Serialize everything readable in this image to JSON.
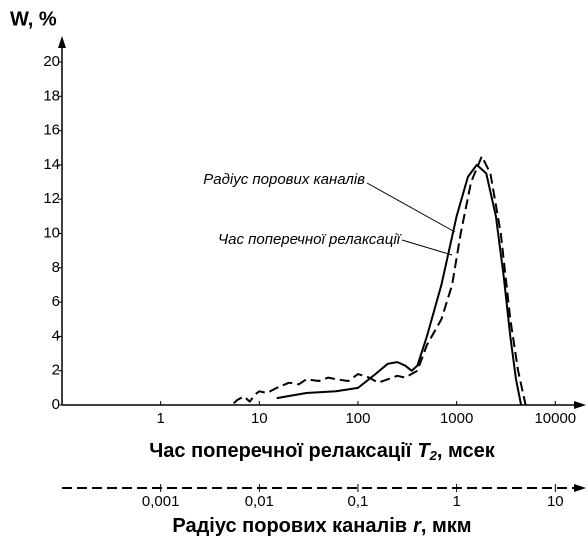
{
  "chart_data": {
    "type": "line",
    "y_label": "W, %",
    "x_label_parts": [
      "Час поперечної релаксації",
      "T",
      "2",
      ", мсек"
    ],
    "x2_label_parts": [
      "Радіус порових каналів",
      "r",
      ", мкм"
    ],
    "xlog": true,
    "xlim": [
      0.1,
      20000
    ],
    "xticks": [
      1,
      10,
      100,
      1000,
      10000
    ],
    "x2lim": [
      0.0001,
      20
    ],
    "x2ticks": [
      {
        "value": 0.001,
        "label": "0,001"
      },
      {
        "value": 0.01,
        "label": "0,01"
      },
      {
        "value": 0.1,
        "label": "0,1"
      },
      1,
      10
    ],
    "ylim": [
      0,
      20
    ],
    "yticks": [
      0,
      2,
      4,
      6,
      8,
      10,
      12,
      14,
      16,
      18,
      20
    ],
    "grid": false,
    "series": [
      {
        "name": "Радіус порових каналів",
        "color": "#000000",
        "dashed": false,
        "x": [
          15,
          30,
          60,
          100,
          150,
          200,
          250,
          300,
          350,
          400,
          500,
          700,
          1000,
          1300,
          1600,
          2000,
          2500,
          3000,
          3500,
          4000,
          4500
        ],
        "values": [
          0.4,
          0.7,
          0.8,
          1.0,
          1.8,
          2.4,
          2.5,
          2.3,
          2.0,
          2.3,
          4.0,
          7,
          11,
          13.3,
          14.0,
          13.5,
          11,
          7.5,
          4,
          1.5,
          0
        ]
      },
      {
        "name": "Час поперечної релаксації",
        "color": "#000000",
        "dashed": true,
        "x": [
          5.5,
          6,
          7,
          8,
          9,
          10,
          12,
          15,
          20,
          25,
          30,
          40,
          50,
          60,
          80,
          100,
          130,
          160,
          200,
          250,
          300,
          400,
          500,
          700,
          900,
          1100,
          1400,
          1800,
          2200,
          2800,
          3500,
          4200,
          5000
        ],
        "values": [
          0.1,
          0.3,
          0.5,
          0.2,
          0.6,
          0.8,
          0.7,
          1.0,
          1.3,
          1.2,
          1.5,
          1.4,
          1.6,
          1.5,
          1.4,
          1.8,
          1.6,
          1.3,
          1.5,
          1.7,
          1.6,
          2.0,
          3.5,
          5.0,
          7,
          10,
          13,
          14.5,
          13.5,
          10,
          5,
          2,
          0
        ]
      }
    ]
  }
}
